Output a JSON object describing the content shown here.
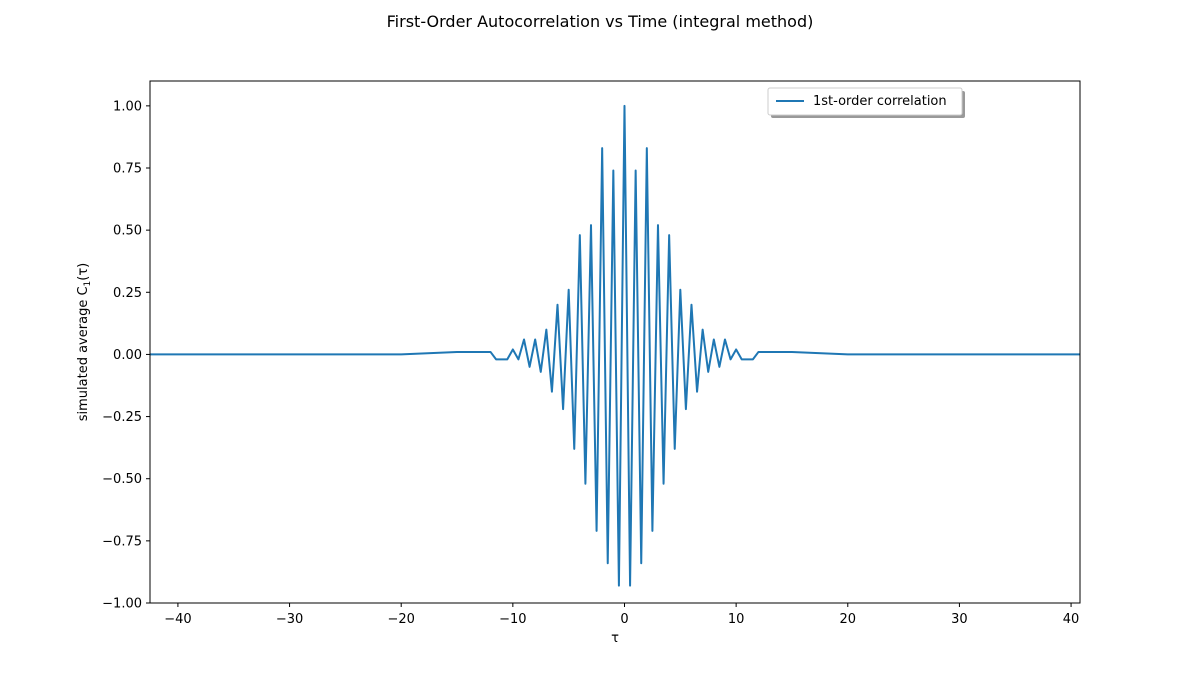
{
  "chart_data": {
    "type": "line",
    "title": "First-Order Autocorrelation vs Time (integral method)",
    "xlabel": "τ",
    "ylabel_main": "simulated average C",
    "ylabel_sub": "1",
    "ylabel_tail": "(τ)",
    "xlim": [
      -42.5,
      40.8
    ],
    "ylim": [
      -1.0,
      1.1
    ],
    "x_ticks": [
      -40,
      -30,
      -20,
      -10,
      0,
      10,
      20,
      30,
      40
    ],
    "x_tick_labels": [
      "−40",
      "−30",
      "−20",
      "−10",
      "0",
      "10",
      "20",
      "30",
      "40"
    ],
    "y_ticks": [
      -1.0,
      -0.75,
      -0.5,
      -0.25,
      0.0,
      0.25,
      0.5,
      0.75,
      1.0
    ],
    "y_tick_labels": [
      "−1.00",
      "−0.75",
      "−0.50",
      "−0.25",
      "0.00",
      "0.25",
      "0.50",
      "0.75",
      "1.00"
    ],
    "legend_position": "upper-right",
    "grid": false,
    "series": [
      {
        "name": "1st-order correlation",
        "color": "#1f77b4",
        "points": [
          [
            -42.5,
            0.0
          ],
          [
            -35.0,
            0.0
          ],
          [
            -30.0,
            0.0
          ],
          [
            -25.0,
            0.0
          ],
          [
            -20.0,
            0.0
          ],
          [
            -15.0,
            0.01
          ],
          [
            -12.0,
            0.01
          ],
          [
            -11.5,
            -0.02
          ],
          [
            -10.5,
            -0.02
          ],
          [
            -10.0,
            0.02
          ],
          [
            -9.5,
            -0.02
          ],
          [
            -9.0,
            0.06
          ],
          [
            -8.5,
            -0.05
          ],
          [
            -8.0,
            0.06
          ],
          [
            -7.5,
            -0.07
          ],
          [
            -7.0,
            0.1
          ],
          [
            -6.5,
            -0.15
          ],
          [
            -6.0,
            0.2
          ],
          [
            -5.5,
            -0.22
          ],
          [
            -5.0,
            0.26
          ],
          [
            -4.5,
            -0.38
          ],
          [
            -4.0,
            0.48
          ],
          [
            -3.5,
            -0.52
          ],
          [
            -3.0,
            0.52
          ],
          [
            -2.5,
            -0.71
          ],
          [
            -2.0,
            0.83
          ],
          [
            -1.5,
            -0.84
          ],
          [
            -1.0,
            0.74
          ],
          [
            -0.5,
            -0.93
          ],
          [
            0.0,
            1.0
          ],
          [
            0.5,
            -0.93
          ],
          [
            1.0,
            0.74
          ],
          [
            1.5,
            -0.84
          ],
          [
            2.0,
            0.83
          ],
          [
            2.5,
            -0.71
          ],
          [
            3.0,
            0.52
          ],
          [
            3.5,
            -0.52
          ],
          [
            4.0,
            0.48
          ],
          [
            4.5,
            -0.38
          ],
          [
            5.0,
            0.26
          ],
          [
            5.5,
            -0.22
          ],
          [
            6.0,
            0.2
          ],
          [
            6.5,
            -0.15
          ],
          [
            7.0,
            0.1
          ],
          [
            7.5,
            -0.07
          ],
          [
            8.0,
            0.06
          ],
          [
            8.5,
            -0.05
          ],
          [
            9.0,
            0.06
          ],
          [
            9.5,
            -0.02
          ],
          [
            10.0,
            0.02
          ],
          [
            10.5,
            -0.02
          ],
          [
            11.5,
            -0.02
          ],
          [
            12.0,
            0.01
          ],
          [
            15.0,
            0.01
          ],
          [
            20.0,
            0.0
          ],
          [
            25.0,
            0.0
          ],
          [
            30.0,
            0.0
          ],
          [
            35.0,
            0.0
          ],
          [
            40.8,
            0.0
          ]
        ]
      }
    ]
  }
}
